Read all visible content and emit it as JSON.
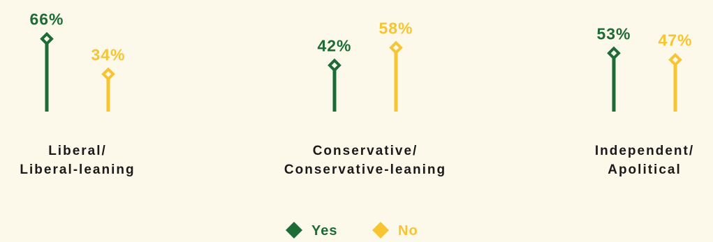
{
  "chart_data": {
    "type": "lollipop",
    "categories": [
      [
        "Liberal/",
        "Liberal-leaning"
      ],
      [
        "Conservative/",
        "Conservative-leaning"
      ],
      [
        "Independent/",
        "Apolitical"
      ]
    ],
    "series": [
      {
        "name": "Yes",
        "color": "#1d6b36",
        "values": [
          66,
          42,
          53
        ],
        "labels": [
          "66%",
          "42%",
          "53%"
        ]
      },
      {
        "name": "No",
        "color": "#f7c531",
        "values": [
          34,
          58,
          47
        ],
        "labels": [
          "34%",
          "58%",
          "47%"
        ]
      }
    ],
    "unit": "%",
    "ylim": [
      0,
      100
    ],
    "legend_position": "bottom-center",
    "grid": false,
    "axes_visible": false
  }
}
